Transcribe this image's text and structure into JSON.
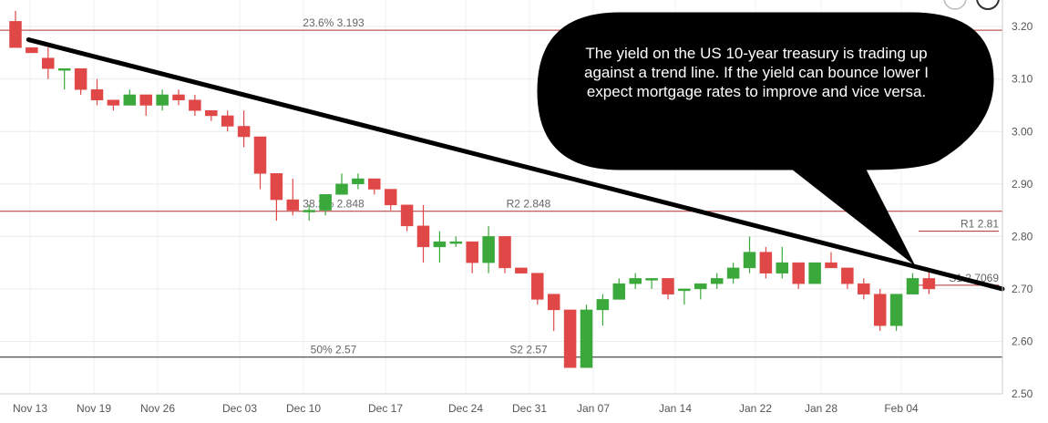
{
  "chart_data": {
    "type": "candlestick",
    "title": "",
    "xlabel": "",
    "ylabel": "",
    "ylim": [
      2.5,
      3.22
    ],
    "y_ticks": [
      "3.20",
      "3.10",
      "3.00",
      "2.90",
      "2.80",
      "2.70",
      "2.60",
      "2.50"
    ],
    "x_ticks": [
      "Nov 13",
      "Nov 19",
      "Nov 26",
      "Dec 03",
      "Dec 10",
      "Dec 17",
      "Dec 24",
      "Dec 31",
      "Jan 07",
      "Jan 14",
      "Jan 22",
      "Jan 28",
      "Feb 04"
    ],
    "colors": {
      "up": "#3aa83a",
      "down": "#e04848",
      "fib": "#b03030",
      "trend": "#000000"
    },
    "candles": [
      {
        "o": 3.21,
        "h": 3.23,
        "l": 3.16,
        "c": 3.16
      },
      {
        "o": 3.16,
        "h": 3.16,
        "l": 3.15,
        "c": 3.15
      },
      {
        "o": 3.14,
        "h": 3.16,
        "l": 3.1,
        "c": 3.12
      },
      {
        "o": 3.12,
        "h": 3.12,
        "l": 3.08,
        "c": 3.12
      },
      {
        "o": 3.12,
        "h": 3.12,
        "l": 3.07,
        "c": 3.08
      },
      {
        "o": 3.08,
        "h": 3.1,
        "l": 3.05,
        "c": 3.06
      },
      {
        "o": 3.06,
        "h": 3.06,
        "l": 3.04,
        "c": 3.05
      },
      {
        "o": 3.05,
        "h": 3.08,
        "l": 3.05,
        "c": 3.07
      },
      {
        "o": 3.07,
        "h": 3.07,
        "l": 3.03,
        "c": 3.05
      },
      {
        "o": 3.05,
        "h": 3.08,
        "l": 3.04,
        "c": 3.07
      },
      {
        "o": 3.07,
        "h": 3.08,
        "l": 3.05,
        "c": 3.06
      },
      {
        "o": 3.06,
        "h": 3.07,
        "l": 3.03,
        "c": 3.04
      },
      {
        "o": 3.04,
        "h": 3.04,
        "l": 3.02,
        "c": 3.03
      },
      {
        "o": 3.03,
        "h": 3.04,
        "l": 3.0,
        "c": 3.01
      },
      {
        "o": 3.01,
        "h": 3.04,
        "l": 2.97,
        "c": 2.99
      },
      {
        "o": 2.99,
        "h": 2.99,
        "l": 2.89,
        "c": 2.92
      },
      {
        "o": 2.92,
        "h": 2.92,
        "l": 2.83,
        "c": 2.87
      },
      {
        "o": 2.87,
        "h": 2.91,
        "l": 2.84,
        "c": 2.85
      },
      {
        "o": 2.85,
        "h": 2.86,
        "l": 2.83,
        "c": 2.85
      },
      {
        "o": 2.85,
        "h": 2.88,
        "l": 2.84,
        "c": 2.88
      },
      {
        "o": 2.88,
        "h": 2.92,
        "l": 2.88,
        "c": 2.9
      },
      {
        "o": 2.9,
        "h": 2.92,
        "l": 2.89,
        "c": 2.91
      },
      {
        "o": 2.91,
        "h": 2.91,
        "l": 2.88,
        "c": 2.89
      },
      {
        "o": 2.89,
        "h": 2.89,
        "l": 2.85,
        "c": 2.86
      },
      {
        "o": 2.86,
        "h": 2.86,
        "l": 2.81,
        "c": 2.82
      },
      {
        "o": 2.82,
        "h": 2.86,
        "l": 2.75,
        "c": 2.78
      },
      {
        "o": 2.78,
        "h": 2.81,
        "l": 2.75,
        "c": 2.79
      },
      {
        "o": 2.79,
        "h": 2.8,
        "l": 2.78,
        "c": 2.79
      },
      {
        "o": 2.79,
        "h": 2.79,
        "l": 2.73,
        "c": 2.75
      },
      {
        "o": 2.75,
        "h": 2.82,
        "l": 2.73,
        "c": 2.8
      },
      {
        "o": 2.8,
        "h": 2.8,
        "l": 2.73,
        "c": 2.74
      },
      {
        "o": 2.74,
        "h": 2.74,
        "l": 2.73,
        "c": 2.73
      },
      {
        "o": 2.73,
        "h": 2.73,
        "l": 2.67,
        "c": 2.68
      },
      {
        "o": 2.69,
        "h": 2.69,
        "l": 2.62,
        "c": 2.66
      },
      {
        "o": 2.66,
        "h": 2.66,
        "l": 2.55,
        "c": 2.55
      },
      {
        "o": 2.55,
        "h": 2.67,
        "l": 2.55,
        "c": 2.66
      },
      {
        "o": 2.66,
        "h": 2.69,
        "l": 2.63,
        "c": 2.68
      },
      {
        "o": 2.68,
        "h": 2.72,
        "l": 2.68,
        "c": 2.71
      },
      {
        "o": 2.71,
        "h": 2.73,
        "l": 2.7,
        "c": 2.72
      },
      {
        "o": 2.72,
        "h": 2.72,
        "l": 2.7,
        "c": 2.72
      },
      {
        "o": 2.72,
        "h": 2.72,
        "l": 2.68,
        "c": 2.69
      },
      {
        "o": 2.7,
        "h": 2.7,
        "l": 2.67,
        "c": 2.7
      },
      {
        "o": 2.7,
        "h": 2.71,
        "l": 2.68,
        "c": 2.71
      },
      {
        "o": 2.71,
        "h": 2.73,
        "l": 2.7,
        "c": 2.72
      },
      {
        "o": 2.72,
        "h": 2.75,
        "l": 2.71,
        "c": 2.74
      },
      {
        "o": 2.74,
        "h": 2.8,
        "l": 2.73,
        "c": 2.77
      },
      {
        "o": 2.77,
        "h": 2.78,
        "l": 2.72,
        "c": 2.73
      },
      {
        "o": 2.73,
        "h": 2.78,
        "l": 2.72,
        "c": 2.75
      },
      {
        "o": 2.75,
        "h": 2.75,
        "l": 2.7,
        "c": 2.71
      },
      {
        "o": 2.71,
        "h": 2.75,
        "l": 2.71,
        "c": 2.75
      },
      {
        "o": 2.75,
        "h": 2.77,
        "l": 2.74,
        "c": 2.74
      },
      {
        "o": 2.74,
        "h": 2.74,
        "l": 2.7,
        "c": 2.71
      },
      {
        "o": 2.71,
        "h": 2.72,
        "l": 2.68,
        "c": 2.69
      },
      {
        "o": 2.69,
        "h": 2.7,
        "l": 2.62,
        "c": 2.63
      },
      {
        "o": 2.63,
        "h": 2.69,
        "l": 2.62,
        "c": 2.69
      },
      {
        "o": 2.69,
        "h": 2.73,
        "l": 2.69,
        "c": 2.72
      },
      {
        "o": 2.72,
        "h": 2.74,
        "l": 2.69,
        "c": 2.7
      }
    ],
    "levels": [
      {
        "name": "fib-23.6",
        "value": 3.193,
        "label": "23.6% 3.193",
        "color": "#b03030",
        "label_pos": "left"
      },
      {
        "name": "fib-38.2",
        "value": 2.848,
        "label": "38.2% 2.848",
        "color": "#b03030",
        "label_pos": "left"
      },
      {
        "name": "r2",
        "value": 2.848,
        "label": "R2 2.848",
        "color": "#b03030",
        "label_pos": "center"
      },
      {
        "name": "fib-50",
        "value": 2.57,
        "label": "50% 2.57",
        "color": "#222222",
        "label_pos": "left"
      },
      {
        "name": "s2",
        "value": 2.57,
        "label": "S2 2.57",
        "color": "#222222",
        "label_pos": "center"
      }
    ],
    "pivot_labels": [
      {
        "name": "r1",
        "value": 2.81,
        "label": "R1 2.81"
      },
      {
        "name": "s1",
        "value": 2.7069,
        "label": "S1 2.7069"
      }
    ],
    "trend_line": {
      "start_index": 0.8,
      "start_value": 3.175,
      "end_index": 60.5,
      "end_value": 2.7
    },
    "grid": true
  },
  "annotation": {
    "text": "The yield on the US 10-year treasury is trading up against a trend line.  If the yield can bounce lower I expect mortgage rates to improve and vice versa."
  },
  "toolbar_icons": [
    "circle-icon",
    "stroke-icon"
  ]
}
